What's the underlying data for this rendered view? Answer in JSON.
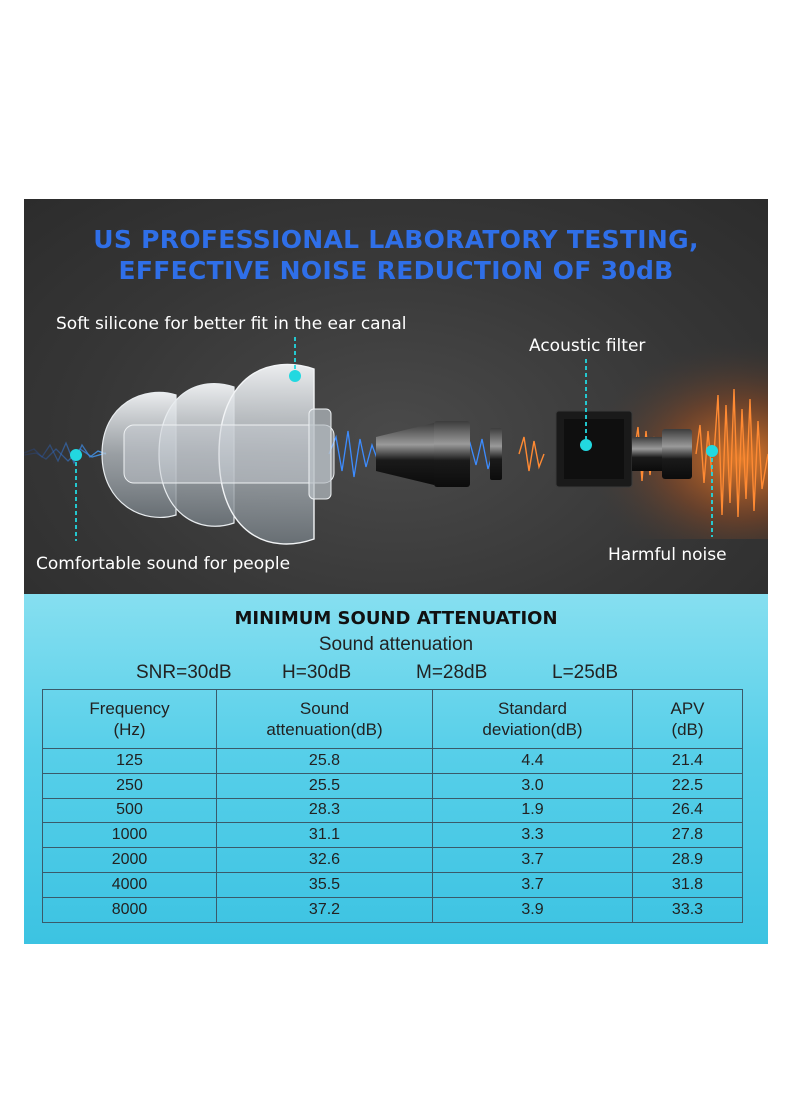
{
  "headline": {
    "line1": "US PROFESSIONAL LABORATORY TESTING,",
    "line2": "EFFECTIVE NOISE REDUCTION OF 30dB"
  },
  "callouts": {
    "silicone": "Soft silicone for better fit in the ear canal",
    "filter": "Acoustic filter",
    "comfort": "Comfortable sound for people",
    "noise": "Harmful noise"
  },
  "colors": {
    "headline": "#2f6fe8",
    "marker": "#22d8e0",
    "noise": "#ff7a2a",
    "sound": "#2f7df0"
  },
  "table_section": {
    "title": "MINIMUM SOUND ATTENUATION",
    "subtitle": "Sound attenuation",
    "ratings": [
      "SNR=30dB",
      "H=30dB",
      "M=28dB",
      "L=25dB"
    ],
    "headers": [
      [
        "Frequency",
        "(Hz)"
      ],
      [
        "Sound",
        "attenuation(dB)"
      ],
      [
        "Standard",
        "deviation(dB)"
      ],
      [
        "APV",
        "(dB)"
      ]
    ],
    "rows": [
      [
        "125",
        "25.8",
        "4.4",
        "21.4"
      ],
      [
        "250",
        "25.5",
        "3.0",
        "22.5"
      ],
      [
        "500",
        "28.3",
        "1.9",
        "26.4"
      ],
      [
        "1000",
        "31.1",
        "3.3",
        "27.8"
      ],
      [
        "2000",
        "32.6",
        "3.7",
        "28.9"
      ],
      [
        "4000",
        "35.5",
        "3.7",
        "31.8"
      ],
      [
        "8000",
        "37.2",
        "3.9",
        "33.3"
      ]
    ]
  }
}
